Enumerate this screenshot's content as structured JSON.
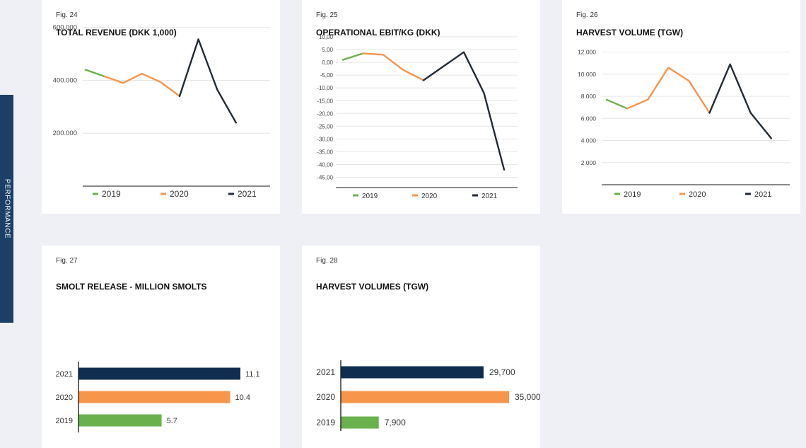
{
  "sidebar": {
    "label": "PERFORMANCE"
  },
  "colors": {
    "c2019": "#6ab04c",
    "c2020": "#f7954b",
    "c2021": "#222a35",
    "c2021bar": "#0f2d4f",
    "grid": "#e6e6e6",
    "axis": "#444444"
  },
  "charts": {
    "fig24": {
      "fig": "Fig. 24",
      "title": "TOTAL REVENUE (DKK 1,000)",
      "chart_data": {
        "type": "line",
        "yticks": [
          "600.000",
          "400.000",
          "200.000"
        ],
        "ytick_values": [
          600000,
          400000,
          200000
        ],
        "ylim": [
          0,
          650000
        ],
        "series": [
          {
            "name": "2019",
            "points": [
              [
                0,
                440000
              ],
              [
                1,
                415000
              ]
            ]
          },
          {
            "name": "2020",
            "points": [
              [
                1,
                415000
              ],
              [
                2,
                390000
              ],
              [
                3,
                425000
              ],
              [
                4,
                393000
              ],
              [
                5,
                340000
              ]
            ]
          },
          {
            "name": "2021",
            "points": [
              [
                5,
                340000
              ],
              [
                6,
                555000
              ],
              [
                7,
                365000
              ],
              [
                8,
                240000
              ]
            ]
          }
        ],
        "legend": [
          "2019",
          "2020",
          "2021"
        ]
      }
    },
    "fig25": {
      "fig": "Fig. 25",
      "title": "OPERATIONAL EBIT/KG (DKK)",
      "chart_data": {
        "type": "line",
        "yticks": [
          "10,00",
          "5,00",
          "0,00",
          "-5,00",
          "-10,00",
          "-15,00",
          "-20,00",
          "-25,00",
          "-30,00",
          "-35,00",
          "-40,00",
          "-45,00"
        ],
        "ytick_values": [
          10,
          5,
          0,
          -5,
          -10,
          -15,
          -20,
          -25,
          -30,
          -35,
          -40,
          -45
        ],
        "ylim": [
          -49,
          10
        ],
        "series": [
          {
            "name": "2019",
            "points": [
              [
                0,
                1
              ],
              [
                1,
                3.5
              ]
            ]
          },
          {
            "name": "2020",
            "points": [
              [
                1,
                3.5
              ],
              [
                2,
                3
              ],
              [
                3,
                -3
              ],
              [
                4,
                -7
              ]
            ]
          },
          {
            "name": "2021",
            "points": [
              [
                4,
                -7
              ],
              [
                6,
                4
              ],
              [
                7,
                -12
              ],
              [
                8,
                -42
              ]
            ]
          }
        ],
        "legend": [
          "2019",
          "2020",
          "2021"
        ]
      }
    },
    "fig26": {
      "fig": "Fig. 26",
      "title": "HARVEST VOLUME (TGW)",
      "chart_data": {
        "type": "line",
        "yticks": [
          "12.000",
          "10.000",
          "8.000",
          "6.000",
          "4.000",
          "2.000"
        ],
        "ytick_values": [
          12000,
          10000,
          8000,
          6000,
          4000,
          2000
        ],
        "ylim": [
          0,
          13000
        ],
        "series": [
          {
            "name": "2019",
            "points": [
              [
                0,
                7700
              ],
              [
                1,
                6900
              ]
            ]
          },
          {
            "name": "2020",
            "points": [
              [
                1,
                6900
              ],
              [
                2,
                7700
              ],
              [
                3,
                10600
              ],
              [
                4,
                9400
              ],
              [
                5,
                6500
              ]
            ]
          },
          {
            "name": "2021",
            "points": [
              [
                5,
                6500
              ],
              [
                6,
                10900
              ],
              [
                7,
                6500
              ],
              [
                8,
                4200
              ]
            ]
          }
        ],
        "legend": [
          "2019",
          "2020",
          "2021"
        ]
      }
    },
    "fig27": {
      "fig": "Fig. 27",
      "title": "SMOLT RELEASE - MILLION SMOLTS",
      "chart_data": {
        "type": "bar",
        "categories": [
          "2021",
          "2020",
          "2019"
        ],
        "values": [
          11.1,
          10.4,
          5.7
        ],
        "labels": [
          "11.1",
          "10.4",
          "5.7"
        ],
        "xlim": [
          0,
          11.1
        ]
      }
    },
    "fig28": {
      "fig": "Fig. 28",
      "title": "HARVEST VOLUMES (TGW)",
      "chart_data": {
        "type": "bar",
        "categories": [
          "2021",
          "2020",
          "2019"
        ],
        "values": [
          29700,
          35000,
          7900
        ],
        "labels": [
          "29,700",
          "35,000",
          "7,900"
        ],
        "xlim": [
          0,
          35000
        ]
      }
    }
  }
}
